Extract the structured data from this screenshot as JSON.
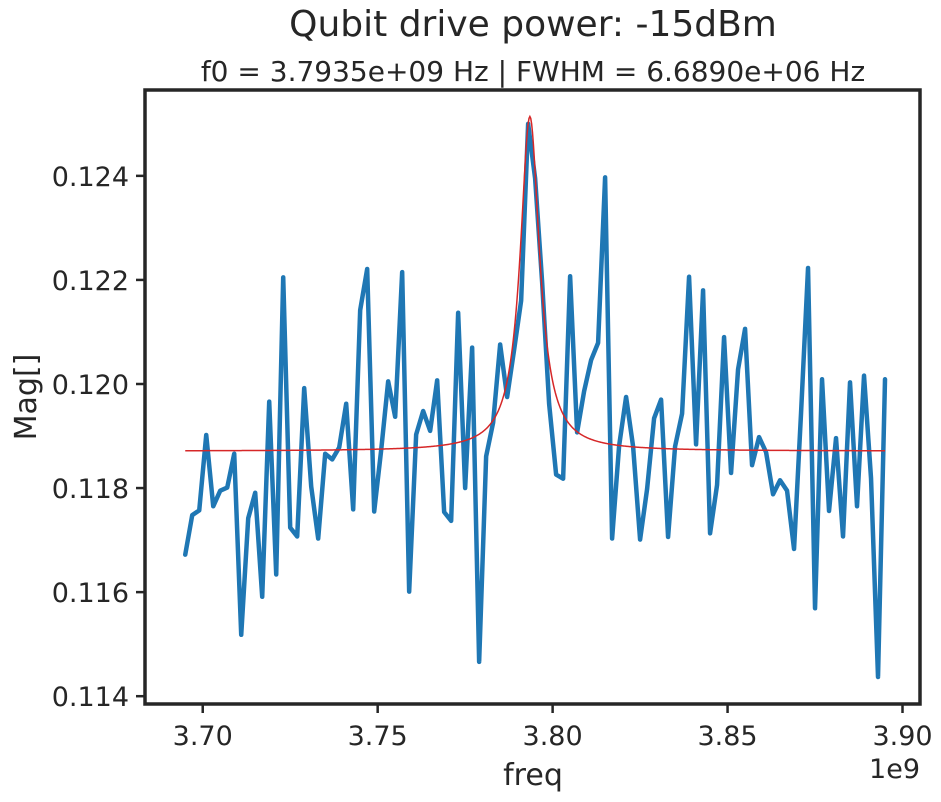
{
  "chart_data": {
    "type": "line",
    "title": "Qubit drive power: -15dBm",
    "subtitle": "f0 = 3.7935e+09 Hz | FWHM = 6.6890e+06 Hz",
    "xlabel": "freq",
    "ylabel": "Mag[]",
    "x_offset_label": "1e9",
    "xlim": [
      3.6835,
      3.905
    ],
    "ylim": [
      0.11385,
      0.12565
    ],
    "xticks": [
      3.7,
      3.75,
      3.8,
      3.85,
      3.9
    ],
    "xtick_labels": [
      "3.70",
      "3.75",
      "3.80",
      "3.85",
      "3.90"
    ],
    "yticks": [
      0.114,
      0.116,
      0.118,
      0.12,
      0.122,
      0.124
    ],
    "ytick_labels": [
      "0.114",
      "0.116",
      "0.118",
      "0.120",
      "0.122",
      "0.124"
    ],
    "grid": false,
    "legend": "none",
    "series": [
      {
        "color": "#1f77b4",
        "x": [
          3.695,
          3.697,
          3.699,
          3.701,
          3.703,
          3.705,
          3.707,
          3.709,
          3.711,
          3.713,
          3.715,
          3.717,
          3.719,
          3.721,
          3.723,
          3.725,
          3.727,
          3.729,
          3.731,
          3.733,
          3.735,
          3.737,
          3.739,
          3.741,
          3.743,
          3.745,
          3.747,
          3.749,
          3.751,
          3.753,
          3.755,
          3.757,
          3.759,
          3.761,
          3.763,
          3.765,
          3.767,
          3.769,
          3.771,
          3.773,
          3.775,
          3.777,
          3.779,
          3.781,
          3.783,
          3.785,
          3.787,
          3.789,
          3.791,
          3.793,
          3.795,
          3.797,
          3.799,
          3.801,
          3.803,
          3.805,
          3.807,
          3.809,
          3.811,
          3.813,
          3.815,
          3.817,
          3.819,
          3.821,
          3.823,
          3.825,
          3.827,
          3.829,
          3.831,
          3.833,
          3.835,
          3.837,
          3.839,
          3.841,
          3.843,
          3.845,
          3.847,
          3.849,
          3.851,
          3.853,
          3.855,
          3.857,
          3.859,
          3.861,
          3.863,
          3.865,
          3.867,
          3.869,
          3.871,
          3.873,
          3.875,
          3.877,
          3.879,
          3.881,
          3.883,
          3.885,
          3.887,
          3.889,
          3.891,
          3.893,
          3.895
        ],
        "y": [
          0.11672,
          0.11748,
          0.11757,
          0.11902,
          0.11765,
          0.11795,
          0.11801,
          0.11866,
          0.11518,
          0.11742,
          0.11791,
          0.11591,
          0.11966,
          0.11634,
          0.12205,
          0.11724,
          0.11707,
          0.11992,
          0.11803,
          0.11703,
          0.11866,
          0.11855,
          0.11878,
          0.11962,
          0.11759,
          0.12142,
          0.12221,
          0.11755,
          0.11873,
          0.12005,
          0.11937,
          0.12215,
          0.11601,
          0.11903,
          0.11948,
          0.1191,
          0.12007,
          0.11754,
          0.11737,
          0.12137,
          0.118,
          0.1207,
          0.11466,
          0.11861,
          0.11926,
          0.12076,
          0.11975,
          0.12066,
          0.1216,
          0.125,
          0.12395,
          0.12196,
          0.11962,
          0.11826,
          0.11818,
          0.12207,
          0.11907,
          0.11986,
          0.12046,
          0.12079,
          0.12397,
          0.11703,
          0.11881,
          0.11975,
          0.1188,
          0.11701,
          0.11798,
          0.11934,
          0.1197,
          0.11706,
          0.1188,
          0.11943,
          0.12206,
          0.11884,
          0.1218,
          0.11713,
          0.11806,
          0.1209,
          0.11829,
          0.12028,
          0.12106,
          0.11844,
          0.11898,
          0.11869,
          0.11788,
          0.11815,
          0.11795,
          0.11683,
          0.11944,
          0.12223,
          0.11569,
          0.12009,
          0.11756,
          0.11896,
          0.11707,
          0.12003,
          0.11765,
          0.12016,
          0.11819,
          0.11437,
          0.12009
        ]
      },
      {
        "color": "#d62728",
        "model": "lorentzian",
        "f0": 3.7935,
        "fwhm": 0.006689,
        "baseline": 0.11871,
        "amplitude": 0.00643,
        "x_range": [
          3.695,
          3.895
        ]
      }
    ]
  }
}
